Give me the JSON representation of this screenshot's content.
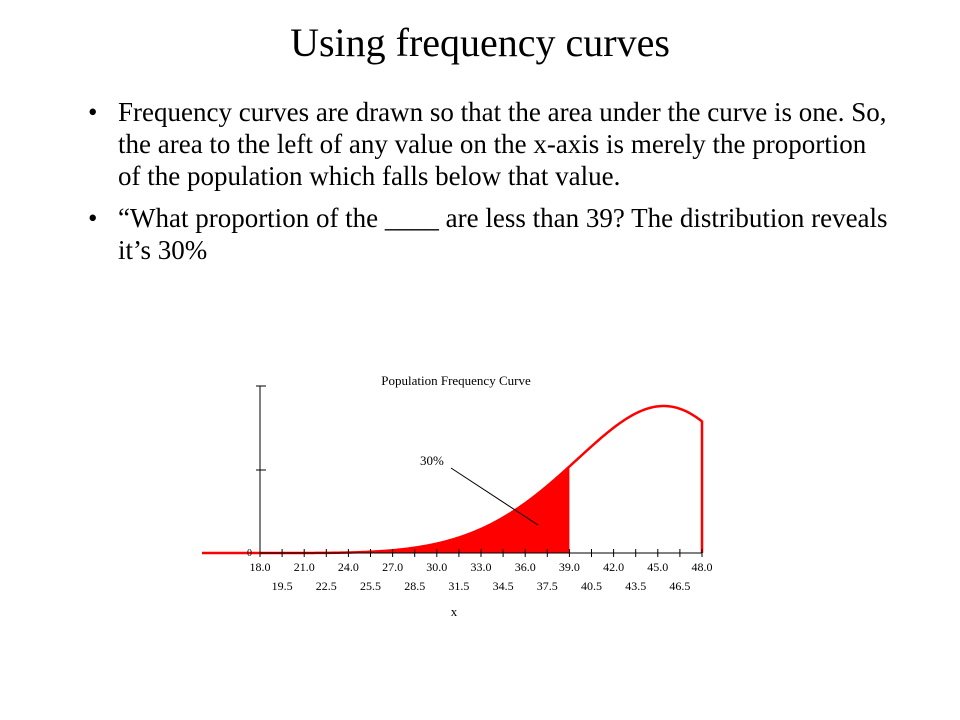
{
  "slide": {
    "title": "Using frequency curves",
    "bullets": [
      "Frequency curves are drawn so that the area under the curve is one.  So, the area to the left of any value on the x-axis is merely the proportion of the population which falls below that value.",
      "“What proportion of the ____ are less than 39?  The distribution reveals it’s 30%"
    ],
    "bullet_char": "•"
  },
  "chart_data": {
    "type": "area",
    "title": "Population Frequency Curve",
    "xlabel": "x",
    "ylabel": "",
    "xlim": [
      18.0,
      48.0
    ],
    "y_origin_label": "0",
    "ticks_major": [
      "18.0",
      "21.0",
      "24.0",
      "27.0",
      "30.0",
      "33.0",
      "36.0",
      "39.0",
      "42.0",
      "45.0",
      "48.0"
    ],
    "ticks_minor": [
      "19.5",
      "22.5",
      "25.5",
      "28.5",
      "31.5",
      "34.5",
      "37.5",
      "40.5",
      "43.5",
      "46.5"
    ],
    "shaded_upto": 39.0,
    "annotation": "30%",
    "colors": {
      "curve": "#ff0000",
      "fill": "#ff0000",
      "axis": "#000000"
    }
  }
}
